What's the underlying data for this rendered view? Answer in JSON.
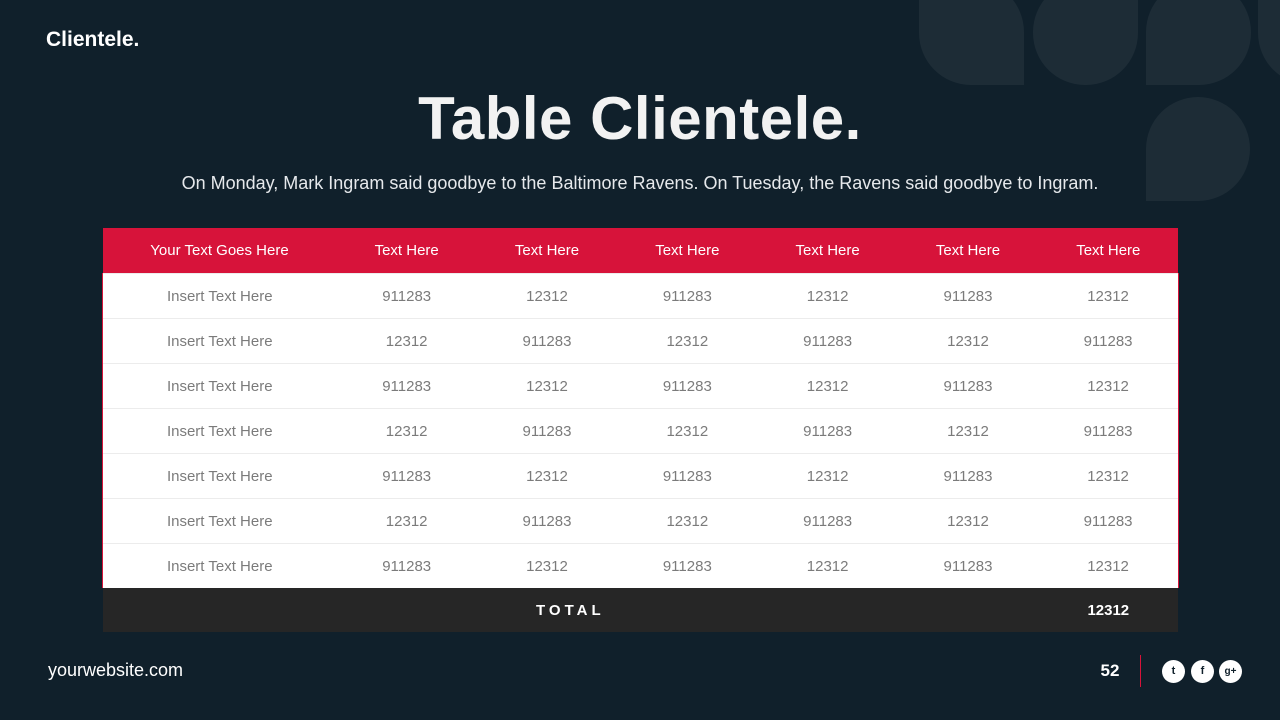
{
  "brand": "Clientele.",
  "title": "Table Clientele.",
  "subtitle": "On Monday, Mark Ingram said goodbye to the Baltimore Ravens. On Tuesday, the Ravens said goodbye to Ingram.",
  "table": {
    "headers": [
      "Your Text Goes Here",
      "Text Here",
      "Text Here",
      "Text Here",
      "Text Here",
      "Text Here",
      "Text Here"
    ],
    "rows": [
      [
        "Insert Text Here",
        "911283",
        "12312",
        "911283",
        "12312",
        "911283",
        "12312"
      ],
      [
        "Insert Text Here",
        "12312",
        "911283",
        "12312",
        "911283",
        "12312",
        "911283"
      ],
      [
        "Insert Text Here",
        "911283",
        "12312",
        "911283",
        "12312",
        "911283",
        "12312"
      ],
      [
        "Insert Text Here",
        "12312",
        "911283",
        "12312",
        "911283",
        "12312",
        "911283"
      ],
      [
        "Insert Text Here",
        "911283",
        "12312",
        "911283",
        "12312",
        "911283",
        "12312"
      ],
      [
        "Insert Text Here",
        "12312",
        "911283",
        "12312",
        "911283",
        "12312",
        "911283"
      ],
      [
        "Insert Text Here",
        "911283",
        "12312",
        "911283",
        "12312",
        "911283",
        "12312"
      ]
    ],
    "total_label": "TOTAL",
    "total_value": "12312"
  },
  "footer": {
    "website": "yourwebsite.com",
    "page_number": "52",
    "social": [
      {
        "icon": "twitter-icon",
        "glyph": "t"
      },
      {
        "icon": "facebook-icon",
        "glyph": "f"
      },
      {
        "icon": "google-plus-icon",
        "glyph": "g+"
      }
    ]
  },
  "colors": {
    "background": "#10202b",
    "accent": "#d7133a",
    "total_row": "#262626",
    "cell_text": "#7b7b7b"
  }
}
